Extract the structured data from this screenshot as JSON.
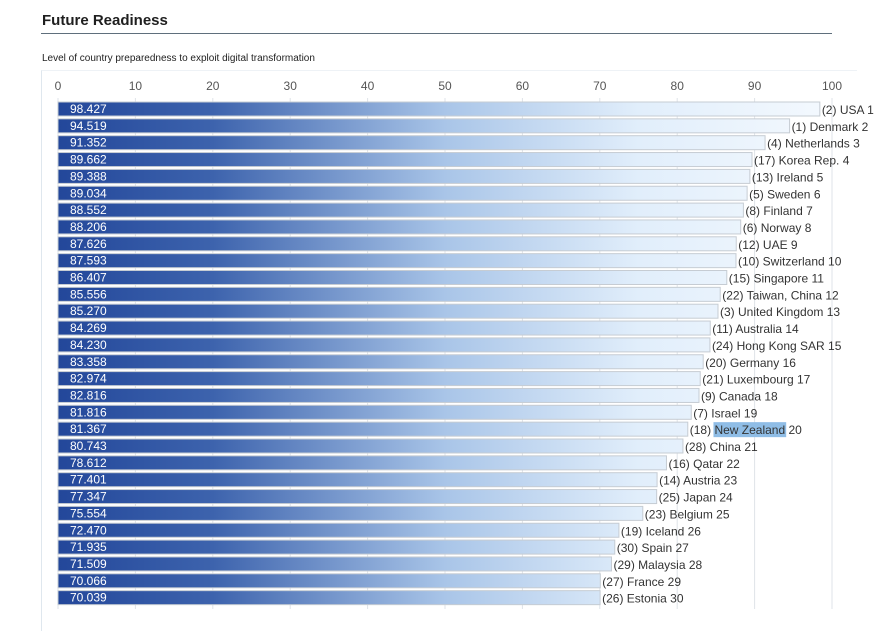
{
  "page": {
    "title": "Future Readiness"
  },
  "chart_data": {
    "type": "bar",
    "orientation": "horizontal",
    "title": "Future Readiness",
    "subtitle": "Level of country preparedness to exploit digital transformation",
    "xlabel": "",
    "ylabel": "",
    "xlim": [
      0,
      100
    ],
    "x_ticks": [
      0,
      10,
      20,
      30,
      40,
      50,
      60,
      70,
      80,
      90,
      100
    ],
    "grid": true,
    "legend": "none",
    "highlighted_country": "New Zealand",
    "highlight_color": "#8fbde6",
    "bar_color_start": "#23479a",
    "bar_color_end": "#f4f9fe",
    "rows": [
      {
        "rank": 1,
        "prev_rank": 2,
        "country": "USA",
        "value": 98.427
      },
      {
        "rank": 2,
        "prev_rank": 1,
        "country": "Denmark",
        "value": 94.519
      },
      {
        "rank": 3,
        "prev_rank": 4,
        "country": "Netherlands",
        "value": 91.352
      },
      {
        "rank": 4,
        "prev_rank": 17,
        "country": "Korea Rep.",
        "value": 89.662
      },
      {
        "rank": 5,
        "prev_rank": 13,
        "country": "Ireland",
        "value": 89.388
      },
      {
        "rank": 6,
        "prev_rank": 5,
        "country": "Sweden",
        "value": 89.034
      },
      {
        "rank": 7,
        "prev_rank": 8,
        "country": "Finland",
        "value": 88.552
      },
      {
        "rank": 8,
        "prev_rank": 6,
        "country": "Norway",
        "value": 88.206
      },
      {
        "rank": 9,
        "prev_rank": 12,
        "country": "UAE",
        "value": 87.626
      },
      {
        "rank": 10,
        "prev_rank": 10,
        "country": "Switzerland",
        "value": 87.593
      },
      {
        "rank": 11,
        "prev_rank": 15,
        "country": "Singapore",
        "value": 86.407
      },
      {
        "rank": 12,
        "prev_rank": 22,
        "country": "Taiwan, China",
        "value": 85.556
      },
      {
        "rank": 13,
        "prev_rank": 3,
        "country": "United Kingdom",
        "value": 85.27
      },
      {
        "rank": 14,
        "prev_rank": 11,
        "country": "Australia",
        "value": 84.269
      },
      {
        "rank": 15,
        "prev_rank": 24,
        "country": "Hong Kong SAR",
        "value": 84.23
      },
      {
        "rank": 16,
        "prev_rank": 20,
        "country": "Germany",
        "value": 83.358
      },
      {
        "rank": 17,
        "prev_rank": 21,
        "country": "Luxembourg",
        "value": 82.974
      },
      {
        "rank": 18,
        "prev_rank": 9,
        "country": "Canada",
        "value": 82.816
      },
      {
        "rank": 19,
        "prev_rank": 7,
        "country": "Israel",
        "value": 81.816
      },
      {
        "rank": 20,
        "prev_rank": 18,
        "country": "New Zealand",
        "value": 81.367
      },
      {
        "rank": 21,
        "prev_rank": 28,
        "country": "China",
        "value": 80.743
      },
      {
        "rank": 22,
        "prev_rank": 16,
        "country": "Qatar",
        "value": 78.612
      },
      {
        "rank": 23,
        "prev_rank": 14,
        "country": "Austria",
        "value": 77.401
      },
      {
        "rank": 24,
        "prev_rank": 25,
        "country": "Japan",
        "value": 77.347
      },
      {
        "rank": 25,
        "prev_rank": 23,
        "country": "Belgium",
        "value": 75.554
      },
      {
        "rank": 26,
        "prev_rank": 19,
        "country": "Iceland",
        "value": 72.47
      },
      {
        "rank": 27,
        "prev_rank": 30,
        "country": "Spain",
        "value": 71.935
      },
      {
        "rank": 28,
        "prev_rank": 29,
        "country": "Malaysia",
        "value": 71.509
      },
      {
        "rank": 29,
        "prev_rank": 27,
        "country": "France",
        "value": 70.066
      },
      {
        "rank": 30,
        "prev_rank": 26,
        "country": "Estonia",
        "value": 70.039
      }
    ]
  }
}
